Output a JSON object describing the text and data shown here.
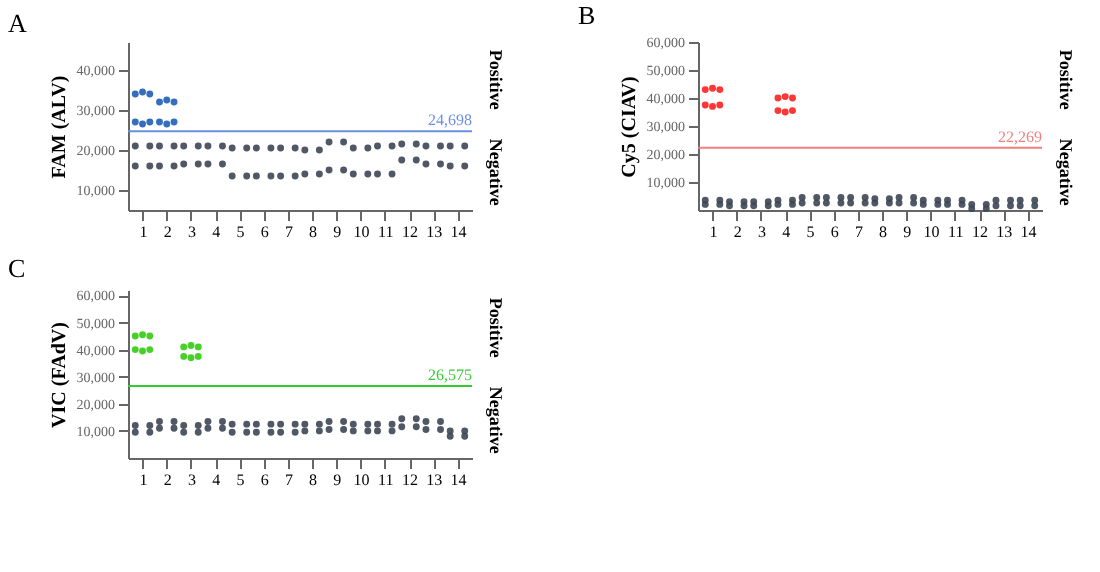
{
  "chart_data": [
    {
      "type": "scatter",
      "title": "A",
      "ylabel": "FAM (ALV)",
      "marker": "circle",
      "xlim": [
        0.4,
        14.6
      ],
      "xticks": [
        1,
        2,
        3,
        4,
        5,
        6,
        7,
        8,
        9,
        10,
        11,
        12,
        13,
        14
      ],
      "ylim": [
        5000,
        47000
      ],
      "yticks": [
        {
          "value": 10000,
          "label": "10,000"
        },
        {
          "value": 20000,
          "label": "20,000"
        },
        {
          "value": 30000,
          "label": "30,000"
        },
        {
          "value": 40000,
          "label": "40,000"
        }
      ],
      "series": [
        {
          "color": "#3d4654",
          "x": [
            0.7,
            1.3,
            0.7,
            1.3,
            1.7,
            2.3,
            1.7,
            2.3,
            2.7,
            3.3,
            2.7,
            3.3,
            3.7,
            4.3,
            3.7,
            4.3,
            4.7,
            5.3,
            4.7,
            5.3,
            5.7,
            6.3,
            5.7,
            6.3,
            6.7,
            7.3,
            6.7,
            7.3,
            7.7,
            8.3,
            7.7,
            8.3,
            8.7,
            9.3,
            8.7,
            9.3,
            9.7,
            10.3,
            9.7,
            10.3,
            10.7,
            11.3,
            10.7,
            11.3,
            11.7,
            12.3,
            11.7,
            12.3,
            12.7,
            13.3,
            12.7,
            13.3,
            13.7,
            14.3,
            13.7,
            14.3
          ],
          "values": [
            21000,
            21000,
            16000,
            16000,
            21000,
            21000,
            16000,
            16000,
            21000,
            21000,
            16500,
            16500,
            21000,
            21000,
            16500,
            16500,
            20500,
            20500,
            13500,
            13500,
            20500,
            20500,
            13500,
            13500,
            20500,
            20500,
            13500,
            13500,
            20000,
            20000,
            14000,
            14000,
            22000,
            22000,
            15000,
            15000,
            20500,
            20500,
            14000,
            14000,
            21000,
            21000,
            14000,
            14000,
            21500,
            21500,
            17500,
            17500,
            21000,
            21000,
            16500,
            16500,
            21000,
            21000,
            16000,
            16000
          ]
        },
        {
          "color": "#1f5fb4",
          "x": [
            0.7,
            1.0,
            1.3,
            0.7,
            1.0,
            1.3,
            1.7,
            2.0,
            2.3,
            1.7,
            2.0,
            2.3
          ],
          "values": [
            34000,
            34500,
            34000,
            27000,
            26500,
            27000,
            32000,
            32500,
            32000,
            27000,
            26500,
            27000
          ]
        }
      ],
      "ref_lines": [
        {
          "axis": "y",
          "value": 24698,
          "label": "24,698",
          "color": "#6a8fe0"
        }
      ],
      "annotations": [
        "Positive",
        "Negative"
      ]
    },
    {
      "type": "scatter",
      "title": "B",
      "ylabel": "Cy5 (CIAV)",
      "marker": "circle",
      "xlim": [
        0.4,
        14.6
      ],
      "xticks": [
        1,
        2,
        3,
        4,
        5,
        6,
        7,
        8,
        9,
        10,
        11,
        12,
        13,
        14
      ],
      "ylim": [
        0,
        60000
      ],
      "yticks": [
        {
          "value": 10000,
          "label": "10,000"
        },
        {
          "value": 20000,
          "label": "20,000"
        },
        {
          "value": 30000,
          "label": "30,000"
        },
        {
          "value": 40000,
          "label": "40,000"
        },
        {
          "value": 50000,
          "label": "50,000"
        },
        {
          "value": 60000,
          "label": "60,000"
        }
      ],
      "series": [
        {
          "color": "#3d4654",
          "x": [
            0.7,
            1.3,
            0.7,
            1.3,
            1.7,
            2.3,
            1.7,
            2.3,
            2.7,
            3.3,
            2.7,
            3.3,
            3.7,
            4.3,
            3.7,
            4.3,
            4.7,
            5.3,
            4.7,
            5.3,
            5.7,
            6.3,
            5.7,
            6.3,
            6.7,
            7.3,
            6.7,
            7.3,
            7.7,
            8.3,
            7.7,
            8.3,
            8.7,
            9.3,
            8.7,
            9.3,
            9.7,
            10.3,
            9.7,
            10.3,
            10.7,
            11.3,
            10.7,
            11.3,
            11.7,
            12.3,
            11.7,
            12.3,
            12.7,
            13.3,
            12.7,
            13.3,
            13.7,
            14.3,
            13.7,
            14.3
          ],
          "values": [
            3500,
            3500,
            2000,
            2000,
            3000,
            3000,
            1500,
            1500,
            3000,
            3000,
            1500,
            1500,
            3500,
            3500,
            2000,
            2000,
            4500,
            4500,
            2500,
            2500,
            4500,
            4500,
            2500,
            2500,
            4500,
            4500,
            2500,
            2500,
            4000,
            4000,
            2500,
            2500,
            4500,
            4500,
            2500,
            2500,
            3500,
            3500,
            2000,
            2000,
            3500,
            3500,
            2000,
            2000,
            2000,
            2000,
            500,
            500,
            3500,
            3500,
            1500,
            1500,
            3500,
            3500,
            1500,
            1500
          ]
        },
        {
          "color": "#ff2020",
          "x": [
            0.7,
            1.0,
            1.3,
            0.7,
            1.0,
            1.3,
            3.7,
            4.0,
            4.3,
            3.7,
            4.0,
            4.3
          ],
          "values": [
            43000,
            43500,
            43000,
            37500,
            37000,
            37500,
            40000,
            40500,
            40000,
            35500,
            35000,
            35500
          ]
        }
      ],
      "ref_lines": [
        {
          "axis": "y",
          "value": 22269,
          "label": "22,269",
          "color": "#f08080"
        }
      ],
      "annotations": [
        "Positive",
        "Negative"
      ]
    },
    {
      "type": "scatter",
      "title": "C",
      "ylabel": "VIC (FAdV)",
      "marker": "circle",
      "xlim": [
        0.4,
        14.6
      ],
      "xticks": [
        1,
        2,
        3,
        4,
        5,
        6,
        7,
        8,
        9,
        10,
        11,
        12,
        13,
        14
      ],
      "ylim": [
        0,
        62000
      ],
      "yticks": [
        {
          "value": 10000,
          "label": "10,000"
        },
        {
          "value": 20000,
          "label": "20,000"
        },
        {
          "value": 30000,
          "label": "30,000"
        },
        {
          "value": 40000,
          "label": "40,000"
        },
        {
          "value": 50000,
          "label": "50,000"
        },
        {
          "value": 60000,
          "label": "60,000"
        }
      ],
      "series": [
        {
          "color": "#3d4654",
          "x": [
            0.7,
            1.3,
            0.7,
            1.3,
            1.7,
            2.3,
            1.7,
            2.3,
            2.7,
            3.3,
            2.7,
            3.3,
            3.7,
            4.3,
            3.7,
            4.3,
            4.7,
            5.3,
            4.7,
            5.3,
            5.7,
            6.3,
            5.7,
            6.3,
            6.7,
            7.3,
            6.7,
            7.3,
            7.7,
            8.3,
            7.7,
            8.3,
            8.7,
            9.3,
            8.7,
            9.3,
            9.7,
            10.3,
            9.7,
            10.3,
            10.7,
            11.3,
            10.7,
            11.3,
            11.7,
            12.3,
            11.7,
            12.3,
            12.7,
            13.3,
            12.7,
            13.3,
            13.7,
            14.3,
            13.7,
            14.3
          ],
          "values": [
            12000,
            12000,
            9500,
            9500,
            13500,
            13500,
            11000,
            11000,
            12000,
            12000,
            9500,
            9500,
            13500,
            13500,
            11000,
            11000,
            12500,
            12500,
            9500,
            9500,
            12500,
            12500,
            9500,
            9500,
            12500,
            12500,
            9500,
            9500,
            12500,
            12500,
            10000,
            10000,
            13500,
            13500,
            10500,
            10500,
            12500,
            12500,
            10000,
            10000,
            12500,
            12500,
            10000,
            10000,
            14500,
            14500,
            11500,
            11500,
            13500,
            13500,
            10500,
            10500,
            10000,
            10000,
            8000,
            8000
          ]
        },
        {
          "color": "#33cc11",
          "x": [
            0.7,
            1.0,
            1.3,
            0.7,
            1.0,
            1.3,
            2.7,
            3.0,
            3.3,
            2.7,
            3.0,
            3.3
          ],
          "values": [
            45000,
            45500,
            45000,
            40000,
            39500,
            40000,
            41000,
            41500,
            41000,
            37500,
            37000,
            37500
          ]
        }
      ],
      "ref_lines": [
        {
          "axis": "y",
          "value": 26575,
          "label": "26,575",
          "color": "#33cc33"
        }
      ],
      "annotations": [
        "Positive",
        "Negative"
      ]
    }
  ]
}
